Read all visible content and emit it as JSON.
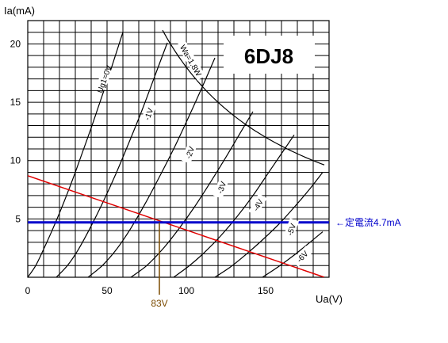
{
  "chart_data": {
    "type": "line",
    "title": "6DJ8",
    "ylabel": "Ia(mA)",
    "xlabel": "Ua(V)",
    "xlim": [
      0,
      190
    ],
    "ylim": [
      0,
      22
    ],
    "xticks": [
      0,
      50,
      100,
      150
    ],
    "yticks": [
      5,
      10,
      15,
      20
    ],
    "x_grid_step": 10,
    "y_grid_step": 1,
    "grid": true,
    "series": [
      {
        "name": "Ug1=0V",
        "label_rot": -70,
        "label_at": [
          48,
          17
        ],
        "points": [
          [
            0,
            0
          ],
          [
            5,
            1
          ],
          [
            10,
            2.4
          ],
          [
            15,
            3.9
          ],
          [
            20,
            5.5
          ],
          [
            25,
            7.2
          ],
          [
            30,
            9
          ],
          [
            35,
            10.9
          ],
          [
            40,
            12.8
          ],
          [
            45,
            14.8
          ],
          [
            50,
            16.8
          ],
          [
            55,
            18.9
          ],
          [
            60,
            21
          ]
        ]
      },
      {
        "name": "-1V",
        "label_rot": -70,
        "label_at": [
          76,
          14
        ],
        "points": [
          [
            18,
            0
          ],
          [
            25,
            1
          ],
          [
            32,
            2.4
          ],
          [
            40,
            4.4
          ],
          [
            48,
            6.6
          ],
          [
            56,
            9
          ],
          [
            64,
            11.6
          ],
          [
            72,
            14.3
          ],
          [
            80,
            17.2
          ],
          [
            88,
            20.1
          ]
        ]
      },
      {
        "name": "-2V",
        "label_rot": -70,
        "label_at": [
          102,
          10.7
        ],
        "points": [
          [
            38,
            0
          ],
          [
            47,
            1
          ],
          [
            56,
            2.4
          ],
          [
            65,
            4.2
          ],
          [
            74,
            6.3
          ],
          [
            83,
            8.6
          ],
          [
            92,
            11
          ],
          [
            101,
            13.6
          ],
          [
            110,
            16.3
          ],
          [
            118,
            18.8
          ]
        ]
      },
      {
        "name": "-3V",
        "label_rot": -70,
        "label_at": [
          122,
          7.7
        ],
        "points": [
          [
            65,
            0
          ],
          [
            75,
            1
          ],
          [
            85,
            2.4
          ],
          [
            95,
            4.1
          ],
          [
            105,
            6
          ],
          [
            115,
            8.1
          ],
          [
            125,
            10.3
          ],
          [
            135,
            12.6
          ],
          [
            142,
            14.2
          ]
        ]
      },
      {
        "name": "-4V",
        "label_rot": -60,
        "label_at": [
          145,
          6.2
        ],
        "points": [
          [
            92,
            0
          ],
          [
            102,
            1
          ],
          [
            112,
            2.2
          ],
          [
            122,
            3.6
          ],
          [
            132,
            5.2
          ],
          [
            142,
            7
          ],
          [
            152,
            9
          ],
          [
            162,
            11
          ],
          [
            168,
            12.2
          ]
        ]
      },
      {
        "name": "-5V",
        "label_rot": -70,
        "label_at": [
          166,
          4.1
        ],
        "points": [
          [
            118,
            0
          ],
          [
            128,
            0.9
          ],
          [
            138,
            2
          ],
          [
            148,
            3.2
          ],
          [
            158,
            4.5
          ],
          [
            168,
            6
          ],
          [
            178,
            7.6
          ],
          [
            186,
            9
          ]
        ]
      },
      {
        "name": "-6V",
        "label_rot": -45,
        "label_at": [
          173,
          1.8
        ],
        "points": [
          [
            148,
            0
          ],
          [
            158,
            0.9
          ],
          [
            168,
            1.9
          ],
          [
            178,
            3
          ],
          [
            186,
            3.9
          ]
        ]
      }
    ],
    "max_dissipation": {
      "name": "Wa=1.8W",
      "watts": 1.8,
      "x_from": 85,
      "x_to": 188,
      "label_rot": 60,
      "label_at": [
        103,
        18.6
      ]
    },
    "load_line": {
      "points": [
        [
          0,
          8.7
        ],
        [
          187,
          0
        ]
      ],
      "color": "#e00000"
    },
    "bias_line": {
      "y": 4.7,
      "x_from": 0,
      "x_to": 190,
      "color": "#0000cc",
      "label": "←定電流4.7mA"
    },
    "operating_point": {
      "x": 83,
      "label": "83V",
      "color": "#7a4a00"
    },
    "colors": {
      "grid": "#000000",
      "curves": "#000000",
      "tick_labels": "#000000"
    }
  }
}
